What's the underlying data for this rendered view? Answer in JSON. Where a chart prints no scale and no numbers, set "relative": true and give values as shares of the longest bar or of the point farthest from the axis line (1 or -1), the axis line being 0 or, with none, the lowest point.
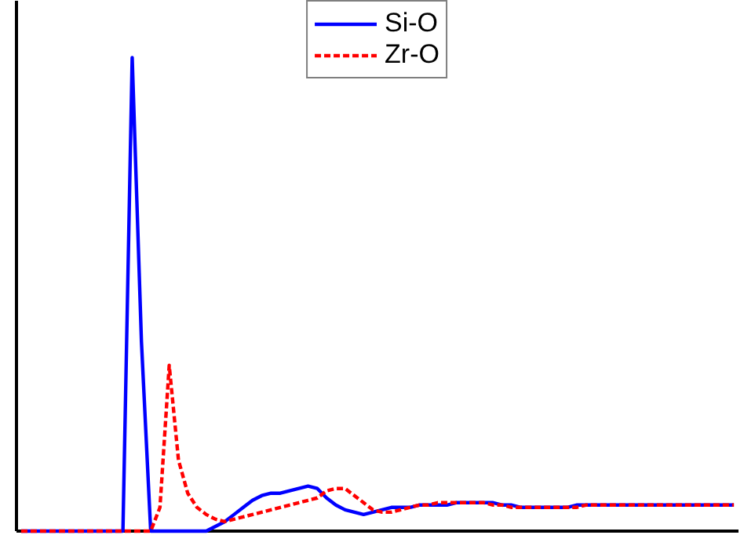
{
  "chart_data": {
    "type": "line",
    "relative": true,
    "legend": "top",
    "categories": [
      null,
      null,
      null,
      null,
      null,
      null,
      null,
      null,
      null,
      null,
      null,
      null,
      null,
      null,
      null,
      null,
      null,
      null,
      null,
      null,
      null,
      null,
      null,
      null,
      null,
      null,
      null,
      null,
      null,
      null,
      null,
      null,
      null,
      null,
      null,
      null,
      null,
      null,
      null,
      null,
      null,
      null,
      null,
      null,
      null,
      null,
      null,
      null,
      null,
      null,
      null,
      null,
      null,
      null,
      null,
      null,
      null,
      null,
      null,
      null,
      null,
      null,
      null,
      null,
      null,
      null,
      null,
      null,
      null,
      null,
      null,
      null,
      null,
      null,
      null,
      null,
      null,
      null
    ],
    "series": [
      {
        "name": "Si-O",
        "color": "#0000ff",
        "line_style": "solid",
        "values": [
          0,
          0,
          0,
          0,
          0,
          0,
          0,
          0,
          0,
          0,
          0,
          0,
          1.0,
          0.4,
          0,
          0,
          0,
          0,
          0,
          0,
          0,
          0.01,
          0.02,
          0.035,
          0.05,
          0.065,
          0.075,
          0.08,
          0.08,
          0.085,
          0.09,
          0.095,
          0.09,
          0.07,
          0.055,
          0.045,
          0.04,
          0.035,
          0.04,
          0.045,
          0.05,
          0.05,
          0.05,
          0.055,
          0.055,
          0.055,
          0.055,
          0.06,
          0.06,
          0.06,
          0.06,
          0.06,
          0.055,
          0.055,
          0.05,
          0.05,
          0.05,
          0.05,
          0.05,
          0.05,
          0.055,
          0.055,
          0.055,
          0.055,
          0.055,
          0.055,
          0.055,
          0.055,
          0.055,
          0.055,
          0.055,
          0.055,
          0.055,
          0.055,
          0.055,
          0.055,
          0.055,
          0.055
        ]
      },
      {
        "name": "Zr-O",
        "color": "#ff0000",
        "line_style": "dashed",
        "values": [
          0,
          0,
          0,
          0,
          0,
          0,
          0,
          0,
          0,
          0,
          0,
          0,
          0,
          0,
          0,
          0.05,
          0.35,
          0.15,
          0.08,
          0.05,
          0.035,
          0.025,
          0.02,
          0.025,
          0.03,
          0.035,
          0.04,
          0.045,
          0.05,
          0.055,
          0.06,
          0.065,
          0.07,
          0.085,
          0.09,
          0.09,
          0.075,
          0.06,
          0.045,
          0.04,
          0.04,
          0.045,
          0.05,
          0.055,
          0.055,
          0.06,
          0.06,
          0.06,
          0.06,
          0.06,
          0.06,
          0.055,
          0.055,
          0.05,
          0.05,
          0.05,
          0.05,
          0.05,
          0.05,
          0.05,
          0.05,
          0.055,
          0.055,
          0.055,
          0.055,
          0.055,
          0.055,
          0.055,
          0.055,
          0.055,
          0.055,
          0.055,
          0.055,
          0.055,
          0.055,
          0.055,
          0.055,
          0.055
        ]
      }
    ]
  }
}
